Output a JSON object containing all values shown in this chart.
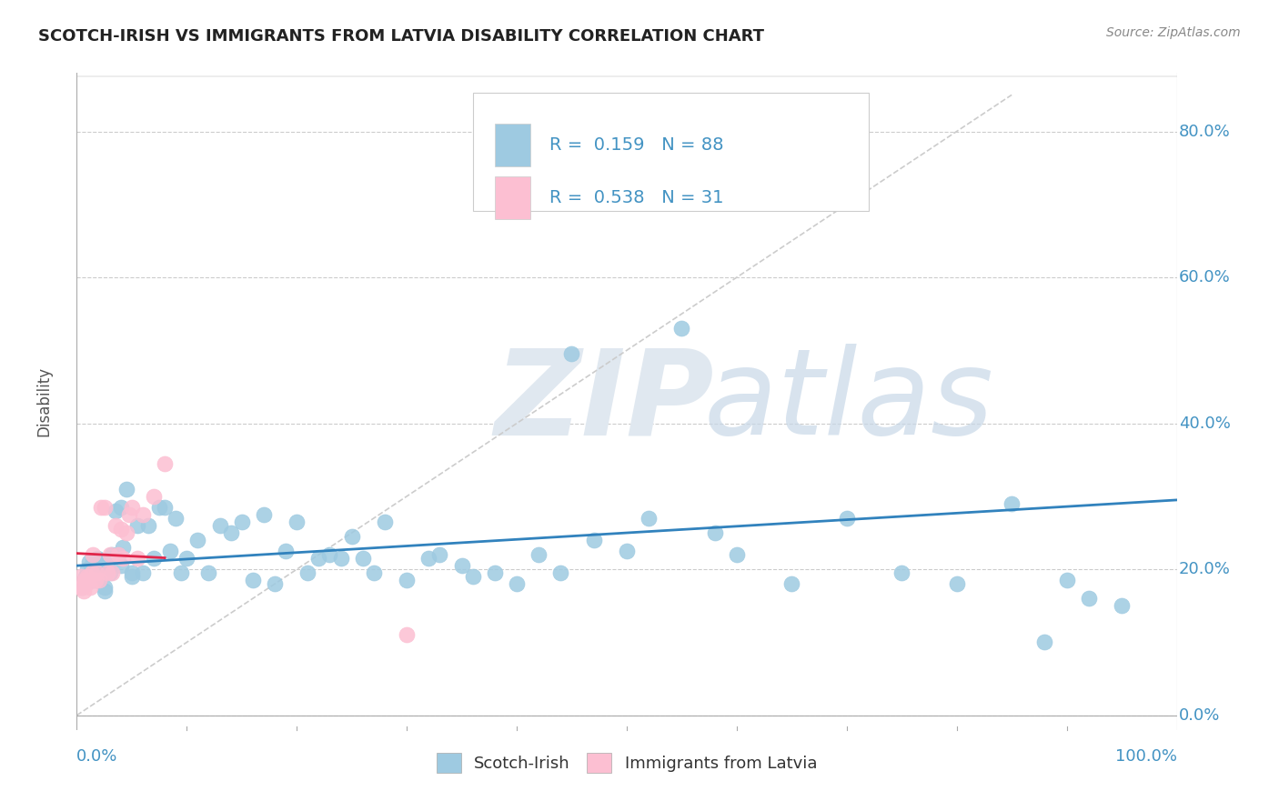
{
  "title": "SCOTCH-IRISH VS IMMIGRANTS FROM LATVIA DISABILITY CORRELATION CHART",
  "source": "Source: ZipAtlas.com",
  "ylabel": "Disability",
  "y_ticks": [
    0.0,
    0.2,
    0.4,
    0.6,
    0.8
  ],
  "y_tick_labels": [
    "0.0%",
    "20.0%",
    "40.0%",
    "60.0%",
    "80.0%"
  ],
  "x_range": [
    0.0,
    1.0
  ],
  "y_range": [
    -0.02,
    0.88
  ],
  "legend1_R": "0.159",
  "legend1_N": "88",
  "legend2_R": "0.538",
  "legend2_N": "31",
  "blue_color": "#9ecae1",
  "pink_color": "#fcbfd2",
  "blue_line_color": "#3182bd",
  "pink_line_color": "#e0254a",
  "blue_tick_color": "#4393c3",
  "scotch_irish_x": [
    0.005,
    0.006,
    0.007,
    0.008,
    0.009,
    0.01,
    0.011,
    0.012,
    0.013,
    0.014,
    0.015,
    0.016,
    0.017,
    0.018,
    0.019,
    0.02,
    0.021,
    0.022,
    0.023,
    0.025,
    0.027,
    0.03,
    0.032,
    0.035,
    0.038,
    0.04,
    0.042,
    0.045,
    0.05,
    0.055,
    0.06,
    0.065,
    0.07,
    0.075,
    0.08,
    0.085,
    0.09,
    0.095,
    0.1,
    0.11,
    0.12,
    0.13,
    0.14,
    0.15,
    0.16,
    0.17,
    0.18,
    0.19,
    0.2,
    0.21,
    0.22,
    0.23,
    0.24,
    0.25,
    0.26,
    0.27,
    0.28,
    0.3,
    0.32,
    0.33,
    0.35,
    0.36,
    0.38,
    0.4,
    0.42,
    0.44,
    0.45,
    0.47,
    0.5,
    0.52,
    0.55,
    0.58,
    0.6,
    0.65,
    0.7,
    0.75,
    0.8,
    0.85,
    0.88,
    0.9,
    0.92,
    0.95,
    0.015,
    0.02,
    0.025,
    0.03,
    0.04,
    0.05
  ],
  "scotch_irish_y": [
    0.175,
    0.18,
    0.185,
    0.19,
    0.185,
    0.2,
    0.21,
    0.19,
    0.195,
    0.185,
    0.21,
    0.2,
    0.195,
    0.185,
    0.215,
    0.185,
    0.195,
    0.2,
    0.21,
    0.175,
    0.195,
    0.215,
    0.22,
    0.28,
    0.22,
    0.285,
    0.23,
    0.31,
    0.195,
    0.26,
    0.195,
    0.26,
    0.215,
    0.285,
    0.285,
    0.225,
    0.27,
    0.195,
    0.215,
    0.24,
    0.195,
    0.26,
    0.25,
    0.265,
    0.185,
    0.275,
    0.18,
    0.225,
    0.265,
    0.195,
    0.215,
    0.22,
    0.215,
    0.245,
    0.215,
    0.195,
    0.265,
    0.185,
    0.215,
    0.22,
    0.205,
    0.19,
    0.195,
    0.18,
    0.22,
    0.195,
    0.495,
    0.24,
    0.225,
    0.27,
    0.53,
    0.25,
    0.22,
    0.18,
    0.27,
    0.195,
    0.18,
    0.29,
    0.1,
    0.185,
    0.16,
    0.15,
    0.185,
    0.2,
    0.17,
    0.195,
    0.205,
    0.19
  ],
  "latvia_x": [
    0.003,
    0.004,
    0.005,
    0.006,
    0.007,
    0.008,
    0.009,
    0.01,
    0.012,
    0.014,
    0.015,
    0.017,
    0.018,
    0.02,
    0.022,
    0.025,
    0.028,
    0.03,
    0.032,
    0.035,
    0.038,
    0.04,
    0.042,
    0.045,
    0.048,
    0.05,
    0.055,
    0.06,
    0.07,
    0.08,
    0.3
  ],
  "latvia_y": [
    0.175,
    0.19,
    0.175,
    0.17,
    0.185,
    0.185,
    0.18,
    0.19,
    0.175,
    0.195,
    0.22,
    0.185,
    0.195,
    0.185,
    0.285,
    0.285,
    0.195,
    0.22,
    0.195,
    0.26,
    0.22,
    0.255,
    0.215,
    0.25,
    0.275,
    0.285,
    0.215,
    0.275,
    0.3,
    0.345,
    0.11
  ]
}
